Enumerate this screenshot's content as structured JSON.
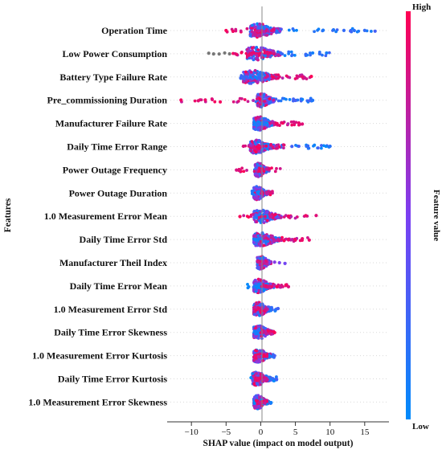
{
  "chart_data": {
    "type": "scatter",
    "subtype": "shap-beeswarm",
    "title": "",
    "xlabel": "SHAP value (impact on model output)",
    "ylabel": "Features",
    "xlim": [
      -13.5,
      18.5
    ],
    "xticks": [
      -10,
      -5,
      0,
      5,
      10,
      15
    ],
    "grid": false,
    "colorbar": {
      "label": "Feature value",
      "high_label": "High",
      "low_label": "Low",
      "high_color": "#ff0052",
      "low_color": "#008bfb",
      "missing_color": "#777777"
    },
    "features": [
      {
        "name": "Operation Time",
        "low_range": [
          -2.5,
          16.5
        ],
        "high_range": [
          -5,
          2
        ],
        "core_range": [
          -1.5,
          3
        ],
        "outliers_low": [
          9,
          10.5,
          12,
          13.5,
          15,
          16.5
        ],
        "outliers_high": [
          -5,
          -4
        ]
      },
      {
        "name": "Low Power Consumption",
        "low_range": [
          -1,
          10
        ],
        "high_range": [
          -4,
          2
        ],
        "core_range": [
          -2,
          3
        ],
        "outliers_low": [
          6.5,
          7.5,
          8.5,
          9.5
        ],
        "outliers_high": [
          -3.5
        ],
        "missing_values": [
          -7.5,
          -6.8,
          -6,
          -5.2,
          -4.5
        ]
      },
      {
        "name": "Battery Type Failure Rate",
        "low_range": [
          -3,
          1
        ],
        "high_range": [
          0.5,
          7.5
        ],
        "core_range": [
          -2.5,
          2.5
        ],
        "outliers_low": [],
        "outliers_high": [
          6,
          7.3
        ]
      },
      {
        "name": "Pre_commissioning Duration",
        "low_range": [
          -1,
          7.5
        ],
        "high_range": [
          -11.5,
          2
        ],
        "core_range": [
          -0.5,
          2
        ],
        "outliers_low": [
          5,
          6,
          7.5
        ],
        "outliers_high": [
          -11.5,
          -9,
          -8,
          -7
        ]
      },
      {
        "name": "Manufacturer Failure Rate",
        "low_range": [
          -1,
          1
        ],
        "high_range": [
          1,
          6
        ],
        "core_range": [
          -1,
          2
        ],
        "outliers_low": [],
        "outliers_high": [
          5.5,
          6
        ]
      },
      {
        "name": "Daily Time Error Range",
        "low_range": [
          0,
          10
        ],
        "high_range": [
          -2.5,
          3.5
        ],
        "core_range": [
          -1.5,
          2
        ],
        "outliers_low": [
          4.5,
          5.5,
          6.8,
          10
        ],
        "outliers_high": [
          -2.5
        ]
      },
      {
        "name": "Power Outage Frequency",
        "low_range": [
          -1,
          1
        ],
        "high_range": [
          -3.5,
          3
        ],
        "core_range": [
          -0.8,
          1.2
        ],
        "outliers_low": [],
        "outliers_high": [
          -3.5,
          -3
        ]
      },
      {
        "name": "Power Outage Duration",
        "low_range": [
          -1.5,
          1
        ],
        "high_range": [
          0,
          2
        ],
        "core_range": [
          -1,
          1
        ],
        "outliers_low": [],
        "outliers_high": []
      },
      {
        "name": "1.0 Measurement Error Mean",
        "low_range": [
          -1,
          1
        ],
        "high_range": [
          -3,
          8
        ],
        "core_range": [
          -1,
          3
        ],
        "outliers_low": [],
        "outliers_high": [
          -3,
          4,
          6.5,
          8
        ]
      },
      {
        "name": "Daily Time Error Std",
        "low_range": [
          -1,
          1
        ],
        "high_range": [
          0,
          7
        ],
        "core_range": [
          -1,
          3
        ],
        "outliers_low": [],
        "outliers_high": [
          4,
          5,
          6,
          7
        ]
      },
      {
        "name": "Manufacturer Theil Index",
        "low_range": [
          -0.5,
          1
        ],
        "high_range": [
          -0.5,
          1
        ],
        "core_range": [
          -0.5,
          1.5
        ],
        "outliers_low": [],
        "outliers_high": [],
        "mid_outliers": [
          2,
          2.7,
          3.5
        ]
      },
      {
        "name": "Daily Time Error Mean",
        "low_range": [
          -2,
          1
        ],
        "high_range": [
          0,
          4
        ],
        "core_range": [
          -1,
          2
        ],
        "outliers_low": [],
        "outliers_high": [
          3,
          4
        ]
      },
      {
        "name": "1.0 Measurement Error Std",
        "low_range": [
          -0.5,
          2.5
        ],
        "high_range": [
          -1,
          1
        ],
        "core_range": [
          -1,
          1.5
        ],
        "outliers_low": [
          2.5
        ],
        "outliers_high": []
      },
      {
        "name": "Daily Time Error Skewness",
        "low_range": [
          -1,
          1
        ],
        "high_range": [
          0,
          2
        ],
        "core_range": [
          -1,
          1.8
        ],
        "outliers_low": [],
        "outliers_high": [
          2
        ]
      },
      {
        "name": "1.0 Measurement Error Kurtosis",
        "low_range": [
          -1,
          2
        ],
        "high_range": [
          -1,
          1
        ],
        "core_range": [
          -1,
          1.5
        ],
        "outliers_low": [
          2
        ],
        "outliers_high": []
      },
      {
        "name": "Daily Time Error Kurtosis",
        "low_range": [
          -1.5,
          2.5
        ],
        "high_range": [
          -1,
          1
        ],
        "core_range": [
          -1.2,
          1.5
        ],
        "outliers_low": [
          2.3
        ],
        "outliers_high": []
      },
      {
        "name": "1.0 Measurement Error Skewness",
        "low_range": [
          -1,
          1.5
        ],
        "high_range": [
          -1,
          1
        ],
        "core_range": [
          -1,
          1.2
        ],
        "outliers_low": [
          1.5
        ],
        "outliers_high": []
      }
    ]
  }
}
